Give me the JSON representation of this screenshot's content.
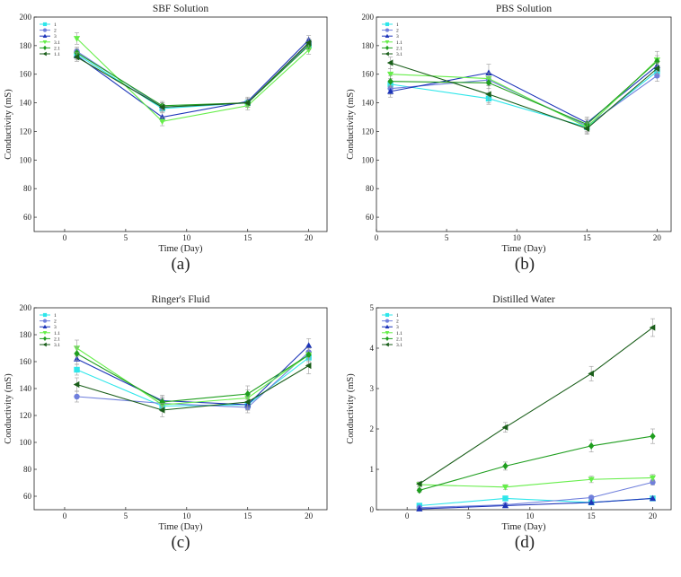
{
  "colors": {
    "s1": "#2ee6ea",
    "s2": "#6f7fdc",
    "s3": "#1c34b8",
    "s4": "#66ee4a",
    "s5": "#1f9e1f",
    "s6": "#1a5e1a",
    "axis": "#222222",
    "error_bar": "#9a9a9a"
  },
  "chart_data": [
    {
      "type": "line",
      "panel_label": "(a)",
      "title": "SBF Solution",
      "xlabel": "Time (Day)",
      "ylabel": "Conductivity (mS)",
      "xlim": [
        -2.5,
        21.5
      ],
      "ylim": [
        50,
        200
      ],
      "xticks": [
        0,
        5,
        10,
        15,
        20
      ],
      "yticks": [
        60,
        80,
        100,
        120,
        140,
        160,
        180,
        200
      ],
      "grid": false,
      "legend_position": "top-left",
      "x": [
        1,
        8,
        15,
        20
      ],
      "series": [
        {
          "name": "1",
          "marker": "square",
          "values": [
            174,
            136,
            140,
            180
          ],
          "errors": [
            3,
            3,
            3,
            3
          ]
        },
        {
          "name": "2",
          "marker": "circle",
          "values": [
            176,
            137,
            140,
            181
          ],
          "errors": [
            3,
            3,
            3,
            3
          ]
        },
        {
          "name": "3",
          "marker": "triangle-up",
          "values": [
            173,
            130,
            141,
            184
          ],
          "errors": [
            3,
            3,
            3,
            3
          ]
        },
        {
          "name": "3.1",
          "marker": "triangle-down",
          "values": [
            185,
            127,
            138,
            177
          ],
          "errors": [
            4,
            3,
            3,
            3
          ]
        },
        {
          "name": "2.1",
          "marker": "diamond",
          "values": [
            175,
            138,
            140,
            180
          ],
          "errors": [
            3,
            3,
            3,
            3
          ]
        },
        {
          "name": "1.1",
          "marker": "triangle-left",
          "values": [
            172,
            137,
            140,
            182
          ],
          "errors": [
            3,
            3,
            3,
            3
          ]
        }
      ]
    },
    {
      "type": "line",
      "panel_label": "(b)",
      "title": "PBS Solution",
      "xlabel": "Time (Day)",
      "ylabel": "Conductivity (mS)",
      "xlim": [
        0,
        21
      ],
      "ylim": [
        50,
        200
      ],
      "xticks": [
        0,
        5,
        10,
        15,
        20
      ],
      "yticks": [
        60,
        80,
        100,
        120,
        140,
        160,
        180,
        200
      ],
      "grid": false,
      "legend_position": "top-left",
      "x": [
        1,
        8,
        15,
        20
      ],
      "series": [
        {
          "name": "1",
          "marker": "square",
          "values": [
            153,
            143,
            123,
            162
          ],
          "errors": [
            4,
            4,
            4,
            4
          ]
        },
        {
          "name": "2",
          "marker": "circle",
          "values": [
            150,
            156,
            124,
            159
          ],
          "errors": [
            4,
            4,
            4,
            4
          ]
        },
        {
          "name": "3",
          "marker": "triangle-up",
          "values": [
            148,
            161,
            126,
            166
          ],
          "errors": [
            4,
            6,
            4,
            4
          ]
        },
        {
          "name": "1.1",
          "marker": "triangle-down",
          "values": [
            160,
            157,
            123,
            170
          ],
          "errors": [
            4,
            4,
            4,
            6
          ]
        },
        {
          "name": "2.1",
          "marker": "diamond",
          "values": [
            155,
            154,
            125,
            169
          ],
          "errors": [
            4,
            4,
            4,
            4
          ]
        },
        {
          "name": "3.1",
          "marker": "triangle-left",
          "values": [
            168,
            146,
            122,
            164
          ],
          "errors": [
            4,
            6,
            4,
            4
          ]
        }
      ]
    },
    {
      "type": "line",
      "panel_label": "(c)",
      "title": "Ringer's Fluid",
      "xlabel": "Time (Day)",
      "ylabel": "Conductivity (mS)",
      "xlim": [
        -2.5,
        21.5
      ],
      "ylim": [
        50,
        200
      ],
      "xticks": [
        0,
        5,
        10,
        15,
        20
      ],
      "yticks": [
        60,
        80,
        100,
        120,
        140,
        160,
        180,
        200
      ],
      "grid": false,
      "legend_position": "top-left",
      "x": [
        1,
        8,
        15,
        20
      ],
      "series": [
        {
          "name": "1",
          "marker": "square",
          "values": [
            154,
            127,
            128,
            163
          ],
          "errors": [
            4,
            4,
            4,
            5
          ]
        },
        {
          "name": "2",
          "marker": "circle",
          "values": [
            134,
            129,
            126,
            167
          ],
          "errors": [
            4,
            4,
            4,
            5
          ]
        },
        {
          "name": "3",
          "marker": "triangle-up",
          "values": [
            162,
            131,
            128,
            172
          ],
          "errors": [
            4,
            4,
            4,
            5
          ]
        },
        {
          "name": "1.1",
          "marker": "triangle-down",
          "values": [
            170,
            128,
            133,
            165
          ],
          "errors": [
            6,
            4,
            6,
            5
          ]
        },
        {
          "name": "2.1",
          "marker": "diamond",
          "values": [
            166,
            130,
            136,
            165
          ],
          "errors": [
            5,
            4,
            6,
            5
          ]
        },
        {
          "name": "3.1",
          "marker": "triangle-left",
          "values": [
            143,
            124,
            130,
            157
          ],
          "errors": [
            5,
            5,
            4,
            6
          ]
        }
      ]
    },
    {
      "type": "line",
      "panel_label": "(d)",
      "title": "Distilled Water",
      "xlabel": "Time (Day)",
      "ylabel": "Conductivity (mS)",
      "xlim": [
        -2.5,
        21.5
      ],
      "ylim": [
        0,
        5
      ],
      "xticks": [
        0,
        5,
        10,
        15,
        20
      ],
      "yticks": [
        0,
        1,
        2,
        3,
        4,
        5
      ],
      "grid": false,
      "legend_position": "top-left",
      "x": [
        1,
        8,
        15,
        20
      ],
      "series": [
        {
          "name": "1",
          "marker": "square",
          "values": [
            0.1,
            0.28,
            0.18,
            0.28
          ],
          "errors": [
            0.04,
            0.05,
            0.05,
            0.05
          ]
        },
        {
          "name": "2",
          "marker": "circle",
          "values": [
            0.05,
            0.12,
            0.3,
            0.68
          ],
          "errors": [
            0.03,
            0.04,
            0.05,
            0.07
          ]
        },
        {
          "name": "3",
          "marker": "triangle-up",
          "values": [
            0.02,
            0.1,
            0.18,
            0.28
          ],
          "errors": [
            0.02,
            0.03,
            0.04,
            0.05
          ]
        },
        {
          "name": "1.1",
          "marker": "triangle-down",
          "values": [
            0.62,
            0.56,
            0.75,
            0.79
          ],
          "errors": [
            0.05,
            0.06,
            0.08,
            0.08
          ]
        },
        {
          "name": "2.1",
          "marker": "diamond",
          "values": [
            0.48,
            1.08,
            1.58,
            1.82
          ],
          "errors": [
            0.05,
            0.1,
            0.15,
            0.18
          ]
        },
        {
          "name": "3.1",
          "marker": "triangle-left",
          "values": [
            0.64,
            2.04,
            3.37,
            4.51
          ],
          "errors": [
            0.05,
            0.12,
            0.18,
            0.22
          ]
        }
      ]
    }
  ]
}
